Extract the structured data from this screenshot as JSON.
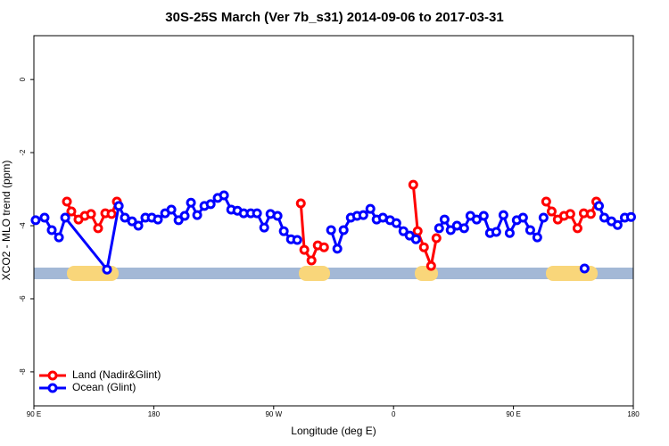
{
  "chart_data": {
    "type": "line",
    "title": "30S-25S March (Ver 7b_s31)   2014-09-06 to 2017-03-31",
    "x_label": "Longitude (deg E)",
    "y_label": "XCO2 - MLO trend (ppm)",
    "xlim": [
      90,
      540
    ],
    "ylim": [
      -8.93,
      1.2
    ],
    "xticks": [
      {
        "value": 90,
        "label": "90 E"
      },
      180,
      {
        "value": 270,
        "label": "90 W"
      },
      {
        "value": 360,
        "label": "0"
      },
      {
        "value": 450,
        "label": "90 E"
      },
      {
        "value": 540,
        "label": "180"
      }
    ],
    "yticks": [
      0,
      -2,
      -4,
      -6,
      -8
    ],
    "legend": "bottom-left",
    "series": [
      {
        "name": "Land (Nadir&Glint)",
        "color": "#ff0000",
        "x": [
          114.8,
          118.1,
          123.5,
          128.2,
          132.9,
          138.2,
          143.6,
          148.3,
          152.3,
          null,
          290.4,
          293.0,
          298.4,
          303.1,
          307.8,
          null,
          374.8,
          378.1,
          382.8,
          388.2,
          392.2,
          null,
          474.6,
          478.7,
          483.3,
          488.0,
          492.7,
          498.1,
          502.8,
          508.1,
          512.2
        ],
        "values": [
          -3.34,
          -3.61,
          -3.83,
          -3.73,
          -3.68,
          -4.07,
          -3.66,
          -3.68,
          -3.34,
          null,
          -3.39,
          -4.66,
          -4.95,
          -4.54,
          -4.59,
          null,
          -2.88,
          -4.15,
          -4.59,
          -5.1,
          -4.34,
          null,
          -3.34,
          -3.61,
          -3.83,
          -3.73,
          -3.68,
          -4.07,
          -3.66,
          -3.68,
          -3.34
        ]
      },
      {
        "name": "Ocean (Glint)",
        "color": "#0000ff",
        "x": [
          91.3,
          98.0,
          103.4,
          108.8,
          113.5,
          144.9,
          153.7,
          158.3,
          163.7,
          168.4,
          173.7,
          178.5,
          183.1,
          188.5,
          193.2,
          198.6,
          203.2,
          207.9,
          212.6,
          218.0,
          222.7,
          228.0,
          232.7,
          238.1,
          242.8,
          247.5,
          252.8,
          257.5,
          262.9,
          267.6,
          272.9,
          277.6,
          283.0,
          287.7,
          null,
          313.1,
          317.8,
          322.5,
          327.9,
          332.6,
          337.3,
          342.6,
          347.3,
          352.0,
          357.4,
          362.1,
          367.4,
          372.1,
          376.8,
          null,
          394.2,
          398.3,
          402.9,
          407.6,
          413.0,
          417.7,
          422.4,
          427.7,
          432.4,
          437.1,
          442.5,
          447.2,
          452.5,
          457.2,
          462.6,
          467.9,
          472.6,
          null,
          503.4,
          null,
          514.2,
          518.2,
          523.6,
          528.2,
          533.6,
          538.3
        ],
        "values": [
          -3.85,
          -3.78,
          -4.12,
          -4.32,
          -3.78,
          -5.2,
          -3.46,
          -3.78,
          -3.88,
          -4.0,
          -3.78,
          -3.78,
          -3.83,
          -3.66,
          -3.56,
          -3.85,
          -3.73,
          -3.37,
          -3.71,
          -3.46,
          -3.41,
          -3.24,
          -3.17,
          -3.56,
          -3.59,
          -3.66,
          -3.66,
          -3.66,
          -4.05,
          -3.68,
          -3.73,
          -4.15,
          -4.37,
          -4.39,
          null,
          -4.12,
          -4.63,
          -4.12,
          -3.78,
          -3.73,
          -3.71,
          -3.54,
          -3.83,
          -3.78,
          -3.85,
          -3.93,
          -4.15,
          -4.27,
          -4.37,
          null,
          -4.07,
          -3.83,
          -4.12,
          -4.0,
          -4.07,
          -3.73,
          -3.83,
          -3.73,
          -4.2,
          -4.17,
          -3.71,
          -4.2,
          -3.85,
          -3.78,
          -4.12,
          -4.32,
          -3.78,
          null,
          -5.17,
          null,
          -3.46,
          -3.78,
          -3.88,
          -3.98,
          -3.78,
          -3.76
        ]
      }
    ]
  }
}
